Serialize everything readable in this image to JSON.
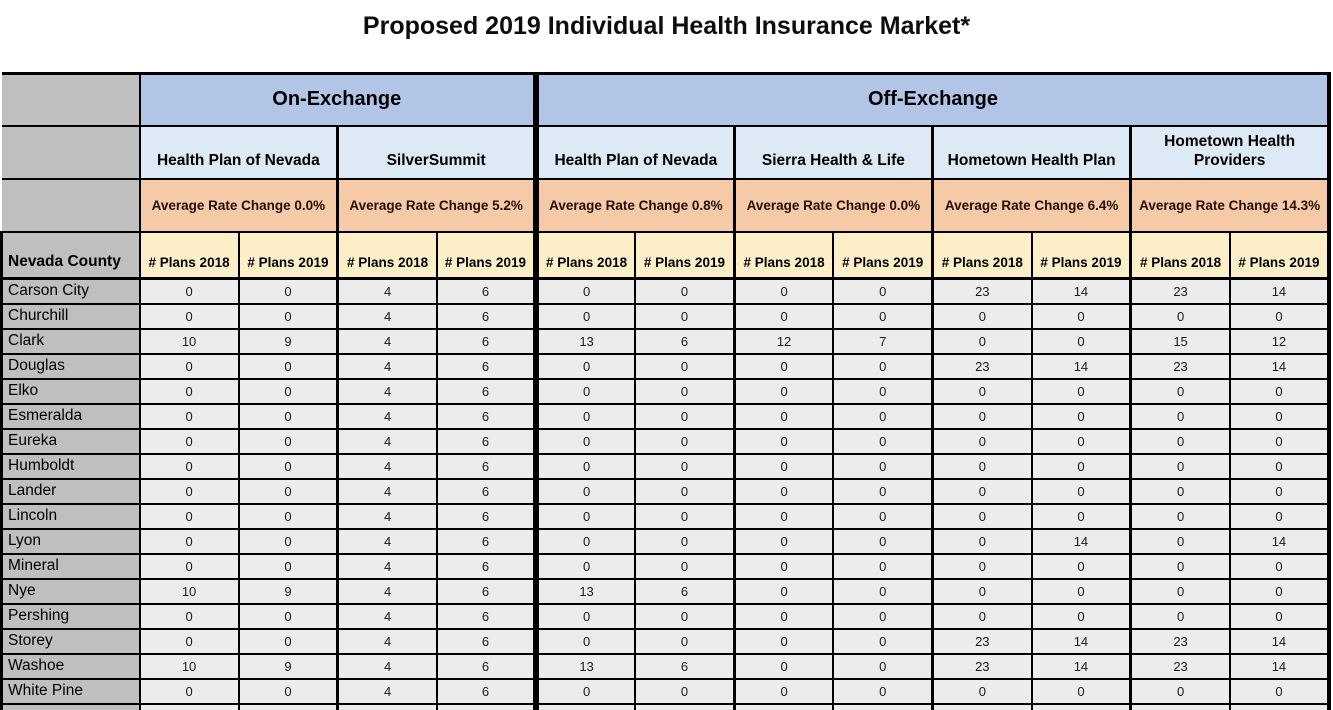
{
  "title": "Proposed 2019 Individual Health Insurance Market*",
  "colors": {
    "header_blue": "#b3c5e6",
    "plan_blue": "#dde9f4",
    "rate_peach": "#f7caa7",
    "plans_cream": "#fcefc8",
    "county_gray": "#bfbfbf",
    "cell_gray": "#ececec",
    "border_black": "#000000"
  },
  "table": {
    "exchange_groups": [
      {
        "label": "On-Exchange",
        "span": 4
      },
      {
        "label": "Off-Exchange",
        "span": 8
      }
    ],
    "plans": [
      {
        "name": "Health Plan of Nevada",
        "rate_change": "Average Rate Change 0.0%"
      },
      {
        "name": "SilverSummit",
        "rate_change": "Average Rate Change 5.2%"
      },
      {
        "name": "Health Plan of Nevada",
        "rate_change": "Average Rate Change 0.8%"
      },
      {
        "name": "Sierra Health & Life",
        "rate_change": "Average Rate Change 0.0%"
      },
      {
        "name": "Hometown Health Plan",
        "rate_change": "Average Rate Change 6.4%"
      },
      {
        "name": "Hometown Health Providers",
        "rate_change": "Average Rate Change 14.3%"
      }
    ],
    "county_header": "Nevada County",
    "col_headers": [
      "# Plans 2018",
      "# Plans 2019"
    ],
    "rows": [
      {
        "county": "Carson City",
        "values": [
          0,
          0,
          4,
          6,
          0,
          0,
          0,
          0,
          23,
          14,
          23,
          14
        ]
      },
      {
        "county": "Churchill",
        "values": [
          0,
          0,
          4,
          6,
          0,
          0,
          0,
          0,
          0,
          0,
          0,
          0
        ]
      },
      {
        "county": "Clark",
        "values": [
          10,
          9,
          4,
          6,
          13,
          6,
          12,
          7,
          0,
          0,
          15,
          12
        ]
      },
      {
        "county": "Douglas",
        "values": [
          0,
          0,
          4,
          6,
          0,
          0,
          0,
          0,
          23,
          14,
          23,
          14
        ]
      },
      {
        "county": "Elko",
        "values": [
          0,
          0,
          4,
          6,
          0,
          0,
          0,
          0,
          0,
          0,
          0,
          0
        ]
      },
      {
        "county": "Esmeralda",
        "values": [
          0,
          0,
          4,
          6,
          0,
          0,
          0,
          0,
          0,
          0,
          0,
          0
        ]
      },
      {
        "county": "Eureka",
        "values": [
          0,
          0,
          4,
          6,
          0,
          0,
          0,
          0,
          0,
          0,
          0,
          0
        ]
      },
      {
        "county": "Humboldt",
        "values": [
          0,
          0,
          4,
          6,
          0,
          0,
          0,
          0,
          0,
          0,
          0,
          0
        ]
      },
      {
        "county": "Lander",
        "values": [
          0,
          0,
          4,
          6,
          0,
          0,
          0,
          0,
          0,
          0,
          0,
          0
        ]
      },
      {
        "county": "Lincoln",
        "values": [
          0,
          0,
          4,
          6,
          0,
          0,
          0,
          0,
          0,
          0,
          0,
          0
        ]
      },
      {
        "county": "Lyon",
        "values": [
          0,
          0,
          4,
          6,
          0,
          0,
          0,
          0,
          0,
          14,
          0,
          14
        ]
      },
      {
        "county": "Mineral",
        "values": [
          0,
          0,
          4,
          6,
          0,
          0,
          0,
          0,
          0,
          0,
          0,
          0
        ]
      },
      {
        "county": "Nye",
        "values": [
          10,
          9,
          4,
          6,
          13,
          6,
          0,
          0,
          0,
          0,
          0,
          0
        ]
      },
      {
        "county": "Pershing",
        "values": [
          0,
          0,
          4,
          6,
          0,
          0,
          0,
          0,
          0,
          0,
          0,
          0
        ]
      },
      {
        "county": "Storey",
        "values": [
          0,
          0,
          4,
          6,
          0,
          0,
          0,
          0,
          23,
          14,
          23,
          14
        ]
      },
      {
        "county": "Washoe",
        "values": [
          10,
          9,
          4,
          6,
          13,
          6,
          0,
          0,
          23,
          14,
          23,
          14
        ]
      },
      {
        "county": "White Pine",
        "values": [
          0,
          0,
          4,
          6,
          0,
          0,
          0,
          0,
          0,
          0,
          0,
          0
        ]
      }
    ],
    "partial_row": {
      "county": "",
      "values": [
        "",
        "",
        "",
        "",
        "",
        "",
        "",
        "",
        "",
        "",
        "",
        ""
      ]
    }
  }
}
